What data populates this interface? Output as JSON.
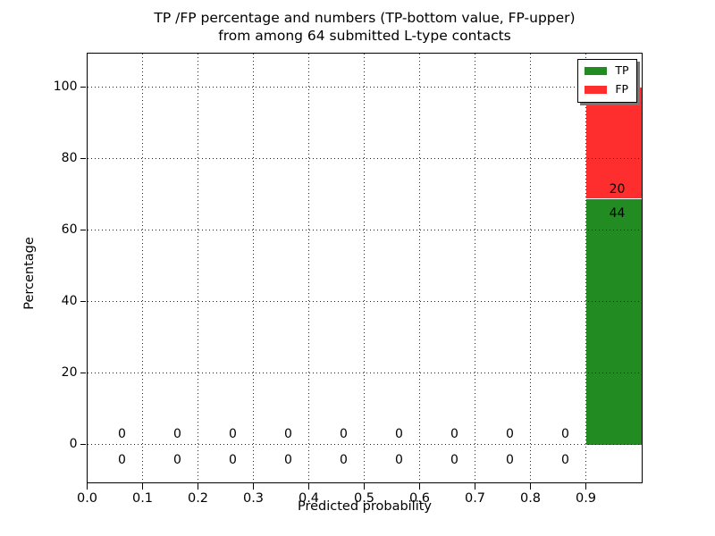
{
  "figure": {
    "title_line1": "TP /FP percentage and numbers (TP-bottom value, FP-upper)",
    "title_line2": "from among 64 submitted L-type contacts"
  },
  "chart_data": {
    "type": "bar",
    "stacked": true,
    "title": "TP /FP percentage and numbers (TP-bottom value, FP-upper) from among 64 submitted L-type contacts",
    "xlabel": "Predicted probability",
    "ylabel": "Percentage",
    "xlim": [
      0.0,
      1.0
    ],
    "ylim": [
      -10.5,
      109.5
    ],
    "x_ticks": [
      "0.0",
      "0.1",
      "0.2",
      "0.3",
      "0.4",
      "0.5",
      "0.6",
      "0.7",
      "0.8",
      "0.9"
    ],
    "y_ticks": [
      "0",
      "20",
      "40",
      "60",
      "80",
      "100"
    ],
    "grid": true,
    "grid_style": "dotted",
    "total_submitted": 64,
    "bins": [
      {
        "range": [
          0.0,
          0.1
        ],
        "tp": 0,
        "fp": 0
      },
      {
        "range": [
          0.1,
          0.2
        ],
        "tp": 0,
        "fp": 0
      },
      {
        "range": [
          0.2,
          0.3
        ],
        "tp": 0,
        "fp": 0
      },
      {
        "range": [
          0.3,
          0.4
        ],
        "tp": 0,
        "fp": 0
      },
      {
        "range": [
          0.4,
          0.5
        ],
        "tp": 0,
        "fp": 0
      },
      {
        "range": [
          0.5,
          0.6
        ],
        "tp": 0,
        "fp": 0
      },
      {
        "range": [
          0.6,
          0.7
        ],
        "tp": 0,
        "fp": 0
      },
      {
        "range": [
          0.7,
          0.8
        ],
        "tp": 0,
        "fp": 0
      },
      {
        "range": [
          0.8,
          0.9
        ],
        "tp": 0,
        "fp": 0
      },
      {
        "range": [
          0.9,
          1.0
        ],
        "tp": 44,
        "fp": 20
      }
    ],
    "series": [
      {
        "name": "TP",
        "color": "#228b22",
        "counts": [
          0,
          0,
          0,
          0,
          0,
          0,
          0,
          0,
          0,
          44
        ],
        "percent_in_last_bin": 68.75
      },
      {
        "name": "FP",
        "color": "#fe2e2e",
        "counts": [
          0,
          0,
          0,
          0,
          0,
          0,
          0,
          0,
          0,
          20
        ],
        "percent_in_last_bin": 31.25
      }
    ],
    "legend": {
      "position": "upper right",
      "entries": [
        {
          "label": "TP",
          "color": "#228b22"
        },
        {
          "label": "FP",
          "color": "#fe2e2e"
        }
      ]
    },
    "colors": {
      "spine": "#000000",
      "grid": "#222222",
      "bar_separator": "#f8f8f8",
      "background": "#ffffff"
    }
  }
}
